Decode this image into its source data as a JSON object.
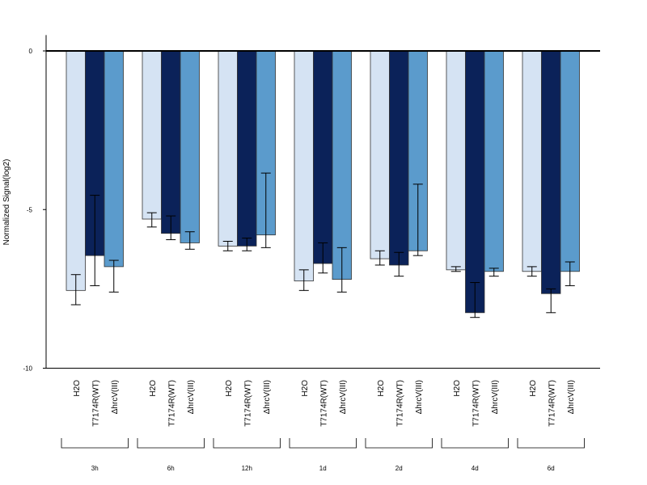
{
  "chart_data": {
    "type": "bar",
    "ylabel": "Normalized Signal(log2)",
    "ylim": [
      -10,
      0.5
    ],
    "yticks": [
      0,
      -5,
      -10
    ],
    "groups": [
      "3h",
      "6h",
      "12h",
      "1d",
      "2d",
      "4d",
      "6d"
    ],
    "series": [
      {
        "name": "H2O",
        "color": "#d5e3f3",
        "values": [
          -7.55,
          -5.3,
          -6.15,
          -7.25,
          -6.55,
          -6.9,
          -6.95
        ],
        "err_low": [
          -8.0,
          -5.55,
          -6.3,
          -7.55,
          -6.75,
          -6.95,
          -7.1
        ],
        "err_high": [
          -7.05,
          -5.1,
          -6.0,
          -6.9,
          -6.3,
          -6.8,
          -6.8
        ]
      },
      {
        "name": "T7174R(WT)",
        "color": "#0b2259",
        "values": [
          -6.45,
          -5.75,
          -6.15,
          -6.7,
          -6.75,
          -8.25,
          -7.65
        ],
        "err_low": [
          -7.4,
          -5.95,
          -6.3,
          -7.0,
          -7.1,
          -8.4,
          -8.25
        ],
        "err_high": [
          -4.55,
          -5.2,
          -5.9,
          -6.05,
          -6.35,
          -7.3,
          -7.5
        ]
      },
      {
        "name": "ΔhrcV(III)",
        "color": "#5b9bcc",
        "values": [
          -6.8,
          -6.05,
          -5.8,
          -7.2,
          -6.3,
          -6.95,
          -6.95
        ],
        "err_low": [
          -7.6,
          -6.25,
          -6.2,
          -7.6,
          -6.45,
          -7.1,
          -7.4
        ],
        "err_high": [
          -6.6,
          -5.7,
          -3.85,
          -6.2,
          -4.2,
          -6.85,
          -6.65
        ]
      }
    ],
    "bar_labels": [
      "H2O",
      "T7174R(WT)",
      "ΔhrcV(III)"
    ],
    "zero_line": true
  }
}
